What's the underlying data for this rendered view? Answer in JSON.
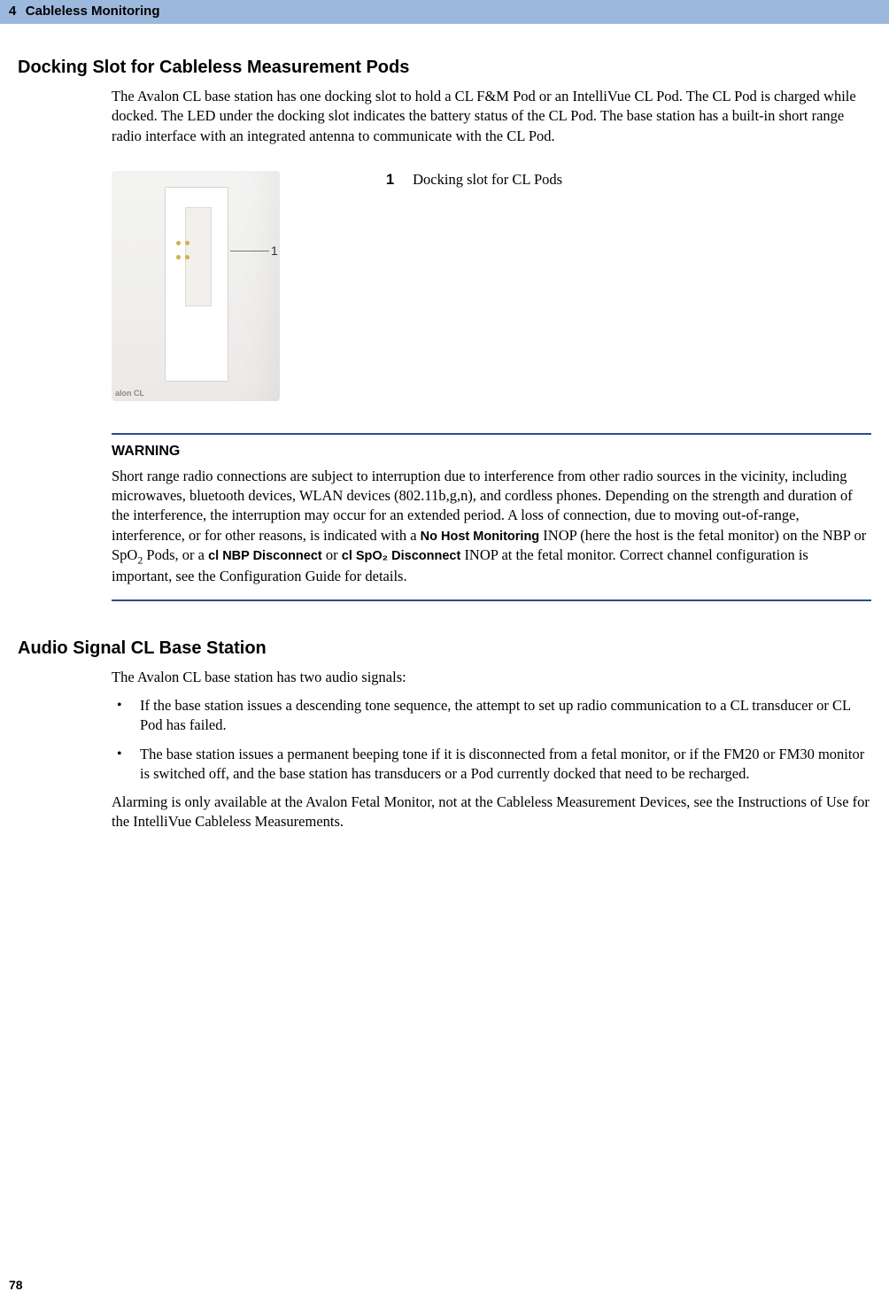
{
  "header": {
    "chapter_number": "4",
    "chapter_title": "Cableless Monitoring"
  },
  "section1": {
    "title": "Docking Slot for Cableless Measurement Pods",
    "intro": "The Avalon CL base station has one docking slot to hold a CL F&M Pod or an IntelliVue CL Pod. The CL Pod is charged while docked. The LED under the docking slot indicates the battery status of the CL Pod. The base station has a built-in short range radio interface with an integrated antenna to communicate with the CL Pod.",
    "figure": {
      "callout_number": "1",
      "brand_text": "alon CL",
      "legend_number": "1",
      "legend_text": "Docking slot for CL Pods"
    },
    "warning": {
      "label": "WARNING",
      "text_before_inop1": "Short range radio connections are subject to interruption due to interference from other radio sources in the vicinity, including microwaves, bluetooth devices, WLAN devices (802.11b,g,n), and cordless phones. Depending on the strength and duration of the interference, the interruption may occur for an extended period. A loss of connection, due to moving out-of-range, interference, or for other reasons, is indicated with a ",
      "inop1": "No Host Monitoring",
      "text_mid1": " INOP (here the host is the fetal monitor) on the NBP or SpO",
      "sub2": "2",
      "text_mid2": " Pods, or a ",
      "inop2": "cl NBP Disconnect",
      "text_mid3": " or ",
      "inop3": "cl SpO₂ Disconnect",
      "text_after": " INOP at the fetal monitor. Correct channel configuration is important, see the Configuration Guide for details."
    }
  },
  "section2": {
    "title": "Audio Signal CL Base Station",
    "intro": "The Avalon CL base station has two audio signals:",
    "bullets": [
      "If the base station issues a descending tone sequence, the attempt to set up radio communication to a CL transducer or CL Pod has failed.",
      "The base station issues a permanent beeping tone if it is disconnected from a fetal monitor, or if the FM20 or FM30 monitor is switched off, and the base station has transducers or a Pod currently docked that need to be recharged."
    ],
    "outro": "Alarming is only available at the Avalon Fetal Monitor, not at the Cableless Measurement Devices, see the Instructions of Use for the IntelliVue Cableless Measurements."
  },
  "page_number": "78",
  "colors": {
    "header_bg": "#9db8dd",
    "rule": "#2a4b8d"
  }
}
